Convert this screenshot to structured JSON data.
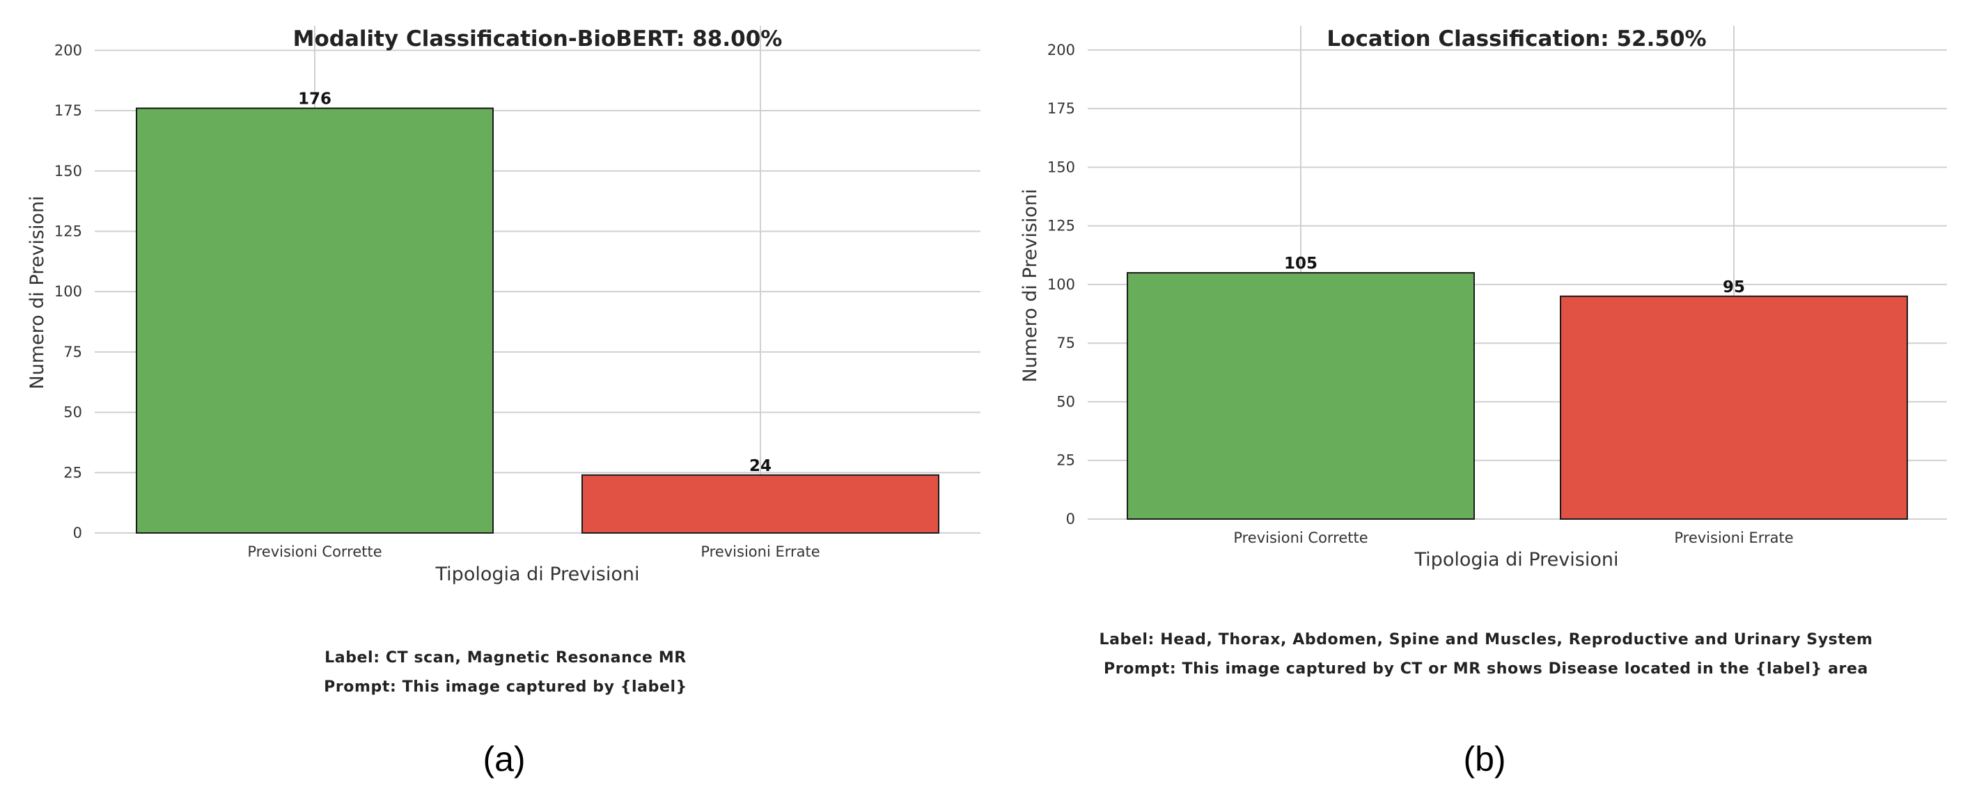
{
  "chart_data": [
    {
      "type": "bar",
      "title": "Modality Classification-BioBERT: 88.00%",
      "xlabel": "Tipologia di Previsioni",
      "ylabel": "Numero di Previsioni",
      "categories": [
        "Previsioni Corrette",
        "Previsioni Errate"
      ],
      "values": [
        176,
        24
      ],
      "colors": [
        "#68ad5a",
        "#e25244"
      ],
      "ylim": [
        0,
        205
      ],
      "yticks": [
        0,
        25,
        50,
        75,
        100,
        125,
        150,
        175,
        200
      ],
      "grid": true,
      "caption_lines": [
        "Label: CT scan, Magnetic Resonance MR",
        "Prompt: This image captured by {label}"
      ],
      "sublabel": "(a)"
    },
    {
      "type": "bar",
      "title": "Location Classification: 52.50%",
      "xlabel": "Tipologia di Previsioni",
      "ylabel": "Numero di Previsioni",
      "categories": [
        "Previsioni Corrette",
        "Previsioni Errate"
      ],
      "values": [
        105,
        95
      ],
      "colors": [
        "#68ad5a",
        "#e25244"
      ],
      "ylim": [
        0,
        205
      ],
      "yticks": [
        0,
        25,
        50,
        75,
        100,
        125,
        150,
        175,
        200
      ],
      "grid": true,
      "caption_lines": [
        "Label: Head, Thorax, Abdomen, Spine and Muscles, Reproductive and Urinary System",
        "Prompt: This image captured by CT or MR shows Disease located in the {label} area"
      ],
      "sublabel": "(b)"
    }
  ]
}
